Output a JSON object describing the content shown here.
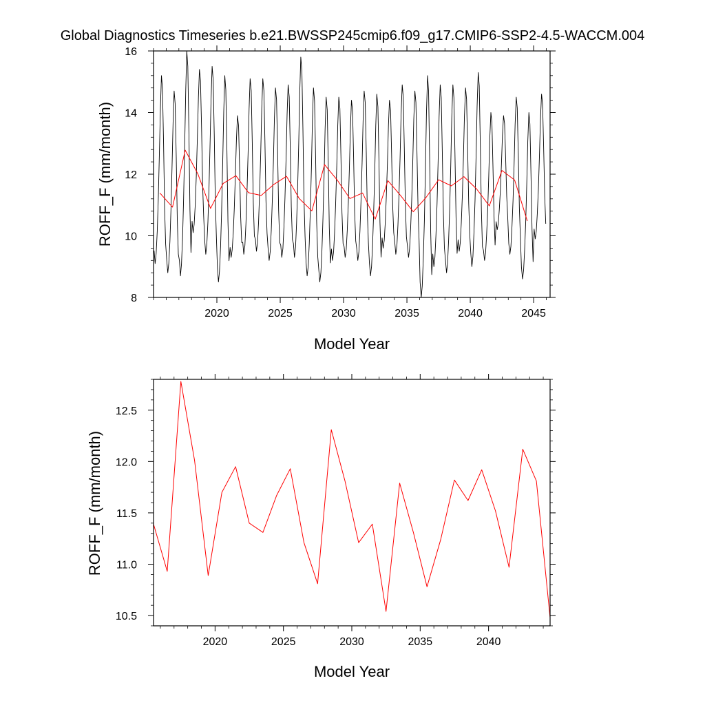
{
  "title": "Global Diagnostics Timeseries b.e21.BWSSP245cmip6.f09_g17.CMIP6-SSP2-4.5-WACCM.004",
  "chart_data": [
    {
      "type": "line",
      "panel": "top",
      "xlabel": "Model Year",
      "ylabel": "ROFF_F (mm/month)",
      "xlim": [
        2015.0,
        2046.3
      ],
      "ylim": [
        8,
        16
      ],
      "xticks": [
        2020,
        2025,
        2030,
        2035,
        2040,
        2045
      ],
      "yticks": [
        8,
        10,
        12,
        14,
        16
      ],
      "grid": false,
      "monthly_climatology": [
        9.3,
        8.9,
        9.2,
        9.9,
        10.9,
        12.2,
        13.7,
        14.7,
        14.3,
        12.6,
        10.6,
        9.5
      ],
      "monthly_peaks": [
        15.2,
        14.7,
        16.0,
        15.4,
        15.5,
        15.2,
        13.9,
        15.1,
        15.1,
        14.8,
        14.9,
        15.8,
        14.8,
        14.5,
        14.5,
        14.4,
        14.7,
        14.6,
        14.4,
        14.9,
        14.7,
        15.2,
        14.9,
        14.9,
        14.8,
        15.3,
        14.0,
        13.9,
        14.5,
        14.0,
        14.6
      ],
      "monthly_troughs": [
        9.1,
        8.8,
        8.7,
        10.1,
        9.4,
        8.5,
        9.3,
        9.4,
        9.5,
        9.2,
        9.3,
        9.3,
        8.7,
        8.5,
        9.2,
        9.3,
        9.2,
        8.7,
        9.6,
        9.4,
        9.3,
        8.0,
        9.0,
        8.8,
        9.5,
        9.0,
        9.2,
        10.2,
        9.4,
        8.6,
        9.9
      ],
      "series": [
        {
          "name": "",
          "color": "#000000",
          "resolution": "monthly",
          "x_start": 2015.0,
          "x_end": 2046.0,
          "values": []
        },
        {
          "name": "",
          "color": "#ff0000",
          "resolution": "annual",
          "x": [
            2015.5,
            2016.5,
            2017.5,
            2018.5,
            2019.5,
            2020.5,
            2021.5,
            2022.5,
            2023.5,
            2024.5,
            2025.5,
            2026.5,
            2027.5,
            2028.5,
            2029.5,
            2030.5,
            2031.5,
            2032.5,
            2033.5,
            2034.5,
            2035.5,
            2036.5,
            2037.5,
            2038.5,
            2039.5,
            2040.5,
            2041.5,
            2042.5,
            2043.5,
            2044.5
          ],
          "values": [
            11.39,
            10.93,
            12.78,
            12.01,
            10.89,
            11.7,
            11.95,
            11.4,
            11.31,
            11.67,
            11.93,
            11.21,
            10.81,
            12.31,
            11.81,
            11.21,
            11.39,
            10.54,
            11.79,
            11.31,
            10.78,
            11.24,
            11.82,
            11.62,
            11.92,
            11.52,
            10.97,
            12.12,
            11.81,
            10.48
          ]
        }
      ]
    },
    {
      "type": "line",
      "panel": "bottom",
      "xlabel": "Model Year",
      "ylabel": "ROFF_F (mm/month)",
      "xlim": [
        2015.5,
        2044.5
      ],
      "ylim": [
        10.4,
        12.8
      ],
      "xticks": [
        2020,
        2025,
        2030,
        2035,
        2040
      ],
      "yticks": [
        10.5,
        11.0,
        11.5,
        12.0,
        12.5
      ],
      "ytick_labels": [
        "10.5",
        "11.0",
        "11.5",
        "12.0",
        "12.5"
      ],
      "grid": false,
      "series": [
        {
          "name": "",
          "color": "#ff0000",
          "resolution": "annual",
          "x": [
            2015.5,
            2016.5,
            2017.5,
            2018.5,
            2019.5,
            2020.5,
            2021.5,
            2022.5,
            2023.5,
            2024.5,
            2025.5,
            2026.5,
            2027.5,
            2028.5,
            2029.5,
            2030.5,
            2031.5,
            2032.5,
            2033.5,
            2034.5,
            2035.5,
            2036.5,
            2037.5,
            2038.5,
            2039.5,
            2040.5,
            2041.5,
            2042.5,
            2043.5,
            2044.5
          ],
          "values": [
            11.39,
            10.93,
            12.78,
            12.01,
            10.89,
            11.7,
            11.95,
            11.4,
            11.31,
            11.67,
            11.93,
            11.21,
            10.81,
            12.31,
            11.81,
            11.21,
            11.39,
            10.54,
            11.79,
            11.31,
            10.78,
            11.24,
            11.82,
            11.62,
            11.92,
            11.52,
            10.97,
            12.12,
            11.81,
            10.48
          ]
        }
      ]
    }
  ]
}
